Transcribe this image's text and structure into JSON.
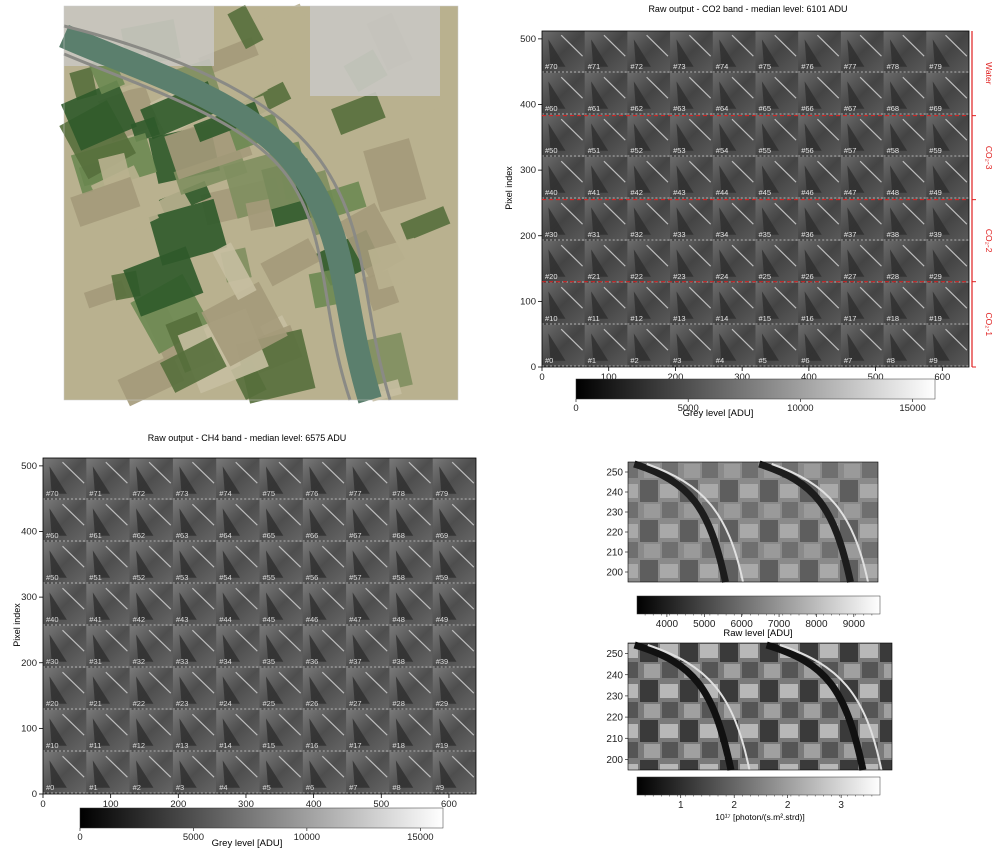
{
  "aerial": {
    "colors": {
      "field_dark": "#2f5a2a",
      "field_light": "#b9b18f",
      "field_mid": "#6d8a52",
      "canal": "#5b7f6d",
      "urban": "#c9c8c3",
      "road": "#8a8a85"
    }
  },
  "chart_data": [
    {
      "type": "heatmap",
      "title": "Raw output - CO2 band - median level: 6101 ADU",
      "xlabel": "",
      "ylabel": "Pixel index",
      "xlim": [
        0,
        640
      ],
      "ylim": [
        0,
        512
      ],
      "xticks": [
        0,
        100,
        200,
        300,
        400,
        500,
        600
      ],
      "yticks": [
        0,
        100,
        200,
        300,
        400,
        500
      ],
      "grid_cols": 10,
      "grid_rows": 8,
      "frame_labels": [
        "#0",
        "#1",
        "#2",
        "#3",
        "#4",
        "#5",
        "#6",
        "#7",
        "#8",
        "#9",
        "#10",
        "#11",
        "#12",
        "#13",
        "#14",
        "#15",
        "#16",
        "#17",
        "#18",
        "#19",
        "#20",
        "#21",
        "#22",
        "#23",
        "#24",
        "#25",
        "#26",
        "#27",
        "#28",
        "#29",
        "#30",
        "#31",
        "#32",
        "#33",
        "#34",
        "#35",
        "#36",
        "#37",
        "#38",
        "#39",
        "#40",
        "#41",
        "#42",
        "#43",
        "#44",
        "#45",
        "#46",
        "#47",
        "#48",
        "#49",
        "#50",
        "#51",
        "#52",
        "#53",
        "#54",
        "#55",
        "#56",
        "#57",
        "#58",
        "#59",
        "#60",
        "#61",
        "#62",
        "#63",
        "#64",
        "#65",
        "#66",
        "#67",
        "#68",
        "#69",
        "#70",
        "#71",
        "#72",
        "#73",
        "#74",
        "#75",
        "#76",
        "#77",
        "#78",
        "#79"
      ],
      "boundaries": [
        130,
        255,
        383
      ],
      "band_labels": [
        "CO₂-1",
        "CO₂-2",
        "CO₂-3",
        "Water"
      ],
      "band_color": "#e02020",
      "colorbar": {
        "label": "Grey level [ADU]",
        "ticks": [
          0,
          5000,
          10000,
          15000
        ],
        "range": [
          0,
          16000
        ]
      }
    },
    {
      "type": "heatmap",
      "title": "Raw output - CH4 band - median level: 6575 ADU",
      "xlabel": "",
      "ylabel": "Pixel index",
      "xlim": [
        0,
        640
      ],
      "ylim": [
        0,
        512
      ],
      "xticks": [
        0,
        100,
        200,
        300,
        400,
        500,
        600
      ],
      "yticks": [
        0,
        100,
        200,
        300,
        400,
        500
      ],
      "grid_cols": 10,
      "grid_rows": 8,
      "frame_labels": [
        "#0",
        "#1",
        "#2",
        "#3",
        "#4",
        "#5",
        "#6",
        "#7",
        "#8",
        "#9",
        "#10",
        "#11",
        "#12",
        "#13",
        "#14",
        "#15",
        "#16",
        "#17",
        "#18",
        "#19",
        "#20",
        "#21",
        "#22",
        "#23",
        "#24",
        "#25",
        "#26",
        "#27",
        "#28",
        "#29",
        "#30",
        "#31",
        "#32",
        "#33",
        "#34",
        "#35",
        "#36",
        "#37",
        "#38",
        "#39",
        "#40",
        "#41",
        "#42",
        "#43",
        "#44",
        "#45",
        "#46",
        "#47",
        "#48",
        "#49",
        "#50",
        "#51",
        "#52",
        "#53",
        "#54",
        "#55",
        "#56",
        "#57",
        "#58",
        "#59",
        "#60",
        "#61",
        "#62",
        "#63",
        "#64",
        "#65",
        "#66",
        "#67",
        "#68",
        "#69",
        "#70",
        "#71",
        "#72",
        "#73",
        "#74",
        "#75",
        "#76",
        "#77",
        "#78",
        "#79"
      ],
      "colorbar": {
        "label": "Grey level [ADU]",
        "ticks": [
          0,
          5000,
          10000,
          15000
        ],
        "range": [
          0,
          16000
        ]
      }
    },
    {
      "type": "heatmap",
      "title": "",
      "ylim": [
        195,
        255
      ],
      "yticks": [
        200,
        210,
        220,
        230,
        240,
        250
      ],
      "colorbar": {
        "label": "Raw level [ADU]",
        "ticks": [
          4000,
          5000,
          6000,
          7000,
          8000,
          9000
        ],
        "range": [
          3200,
          9700
        ]
      }
    },
    {
      "type": "heatmap",
      "title": "",
      "ylim": [
        195,
        255
      ],
      "yticks": [
        200,
        210,
        220,
        230,
        240,
        250
      ],
      "colorbar": {
        "label": "10¹⁷ [photon/(s.m².strd)]",
        "ticks": [
          "1",
          "2",
          "2",
          "3"
        ],
        "range": [
          0.3,
          3.6
        ]
      }
    }
  ]
}
